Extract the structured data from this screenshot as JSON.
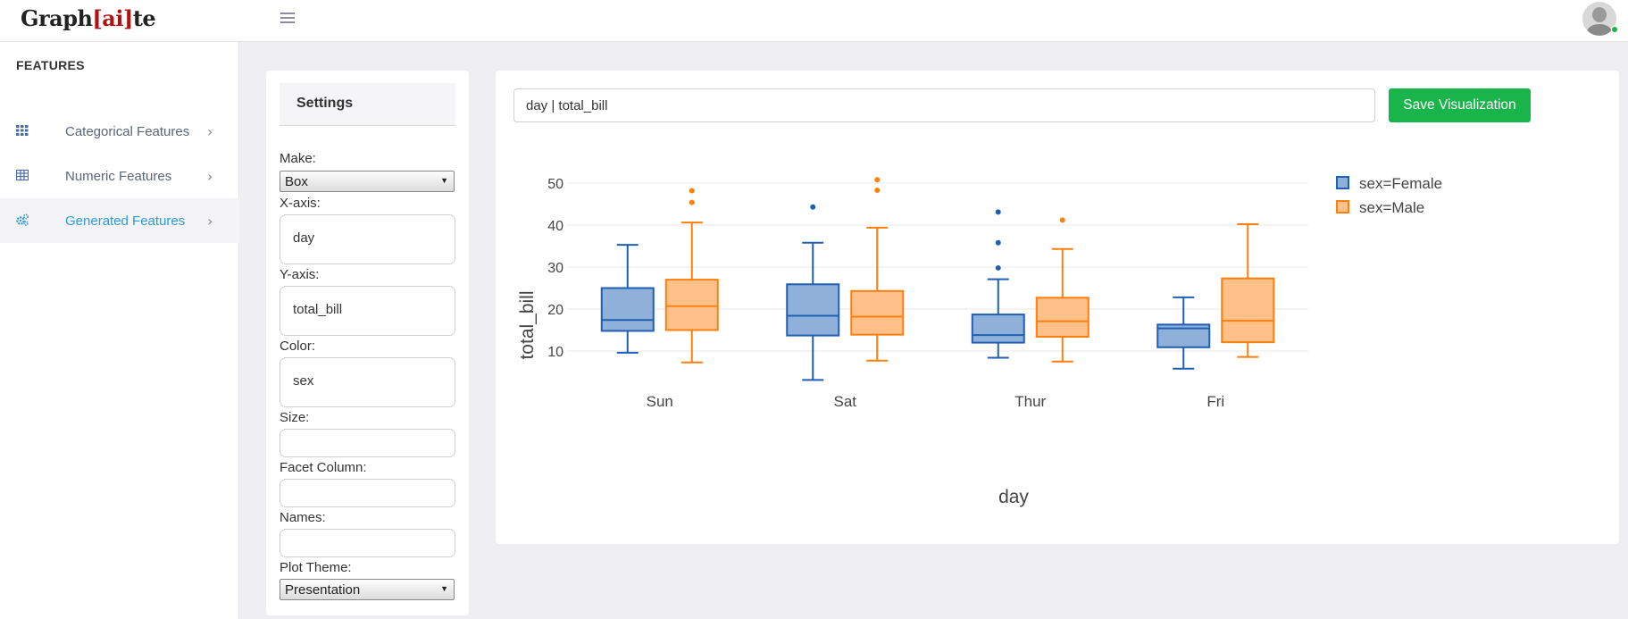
{
  "app": {
    "logo_prefix": "Graph",
    "logo_bracket": "[ai]",
    "logo_suffix": "te"
  },
  "sidebar": {
    "title": "FEATURES",
    "items": [
      {
        "label": "Categorical Features",
        "icon": "grid-icon",
        "active": false
      },
      {
        "label": "Numeric Features",
        "icon": "table-icon",
        "active": false
      },
      {
        "label": "Generated Features",
        "icon": "gears-icon",
        "active": true
      }
    ]
  },
  "settings": {
    "title": "Settings",
    "make_label": "Make:",
    "make_value": "Box",
    "xaxis_label": "X-axis:",
    "xaxis_value": "day",
    "yaxis_label": "Y-axis:",
    "yaxis_value": "total_bill",
    "color_label": "Color:",
    "color_value": "sex",
    "size_label": "Size:",
    "size_value": "",
    "facet_label": "Facet Column:",
    "facet_value": "",
    "names_label": "Names:",
    "names_value": "",
    "theme_label": "Plot Theme:",
    "theme_value": "Presentation"
  },
  "main": {
    "query": "day | total_bill",
    "save_label": "Save Visualization"
  },
  "colors": {
    "accent": "#2d9ad8",
    "save_button": "#19b54a",
    "female": "#1f5fb4",
    "male": "#ff7f0e"
  },
  "chart_data": {
    "type": "box",
    "xlabel": "day",
    "ylabel": "total_bill",
    "categories": [
      "Sun",
      "Sat",
      "Thur",
      "Fri"
    ],
    "yticks": [
      10,
      20,
      30,
      40,
      50
    ],
    "ylim": [
      2,
      53
    ],
    "legend": "top-right",
    "series": [
      {
        "name": "sex=Female",
        "color": "#1f5fb4",
        "fill": "#8fb0d9",
        "boxes": [
          {
            "min": 9.6,
            "q1": 14.8,
            "median": 17.4,
            "q3": 25.0,
            "max": 35.3,
            "outliers": []
          },
          {
            "min": 3.1,
            "q1": 13.7,
            "median": 18.4,
            "q3": 25.9,
            "max": 35.8,
            "outliers": [
              44.3
            ]
          },
          {
            "min": 8.4,
            "q1": 12.0,
            "median": 13.8,
            "q3": 18.7,
            "max": 27.1,
            "outliers": [
              29.8,
              35.8,
              43.1
            ]
          },
          {
            "min": 5.8,
            "q1": 10.9,
            "median": 15.4,
            "q3": 16.3,
            "max": 22.8,
            "outliers": []
          }
        ]
      },
      {
        "name": "sex=Male",
        "color": "#ff7f0e",
        "fill": "#ffc08a",
        "boxes": [
          {
            "min": 7.3,
            "q1": 15.0,
            "median": 20.7,
            "q3": 27.0,
            "max": 40.6,
            "outliers": [
              45.4,
              48.2
            ]
          },
          {
            "min": 7.7,
            "q1": 13.9,
            "median": 18.2,
            "q3": 24.3,
            "max": 39.4,
            "outliers": [
              48.3,
              50.8
            ]
          },
          {
            "min": 7.5,
            "q1": 13.4,
            "median": 17.1,
            "q3": 22.7,
            "max": 34.3,
            "outliers": [
              41.2
            ]
          },
          {
            "min": 8.6,
            "q1": 12.1,
            "median": 17.2,
            "q3": 27.3,
            "max": 40.2,
            "outliers": []
          }
        ]
      }
    ]
  }
}
